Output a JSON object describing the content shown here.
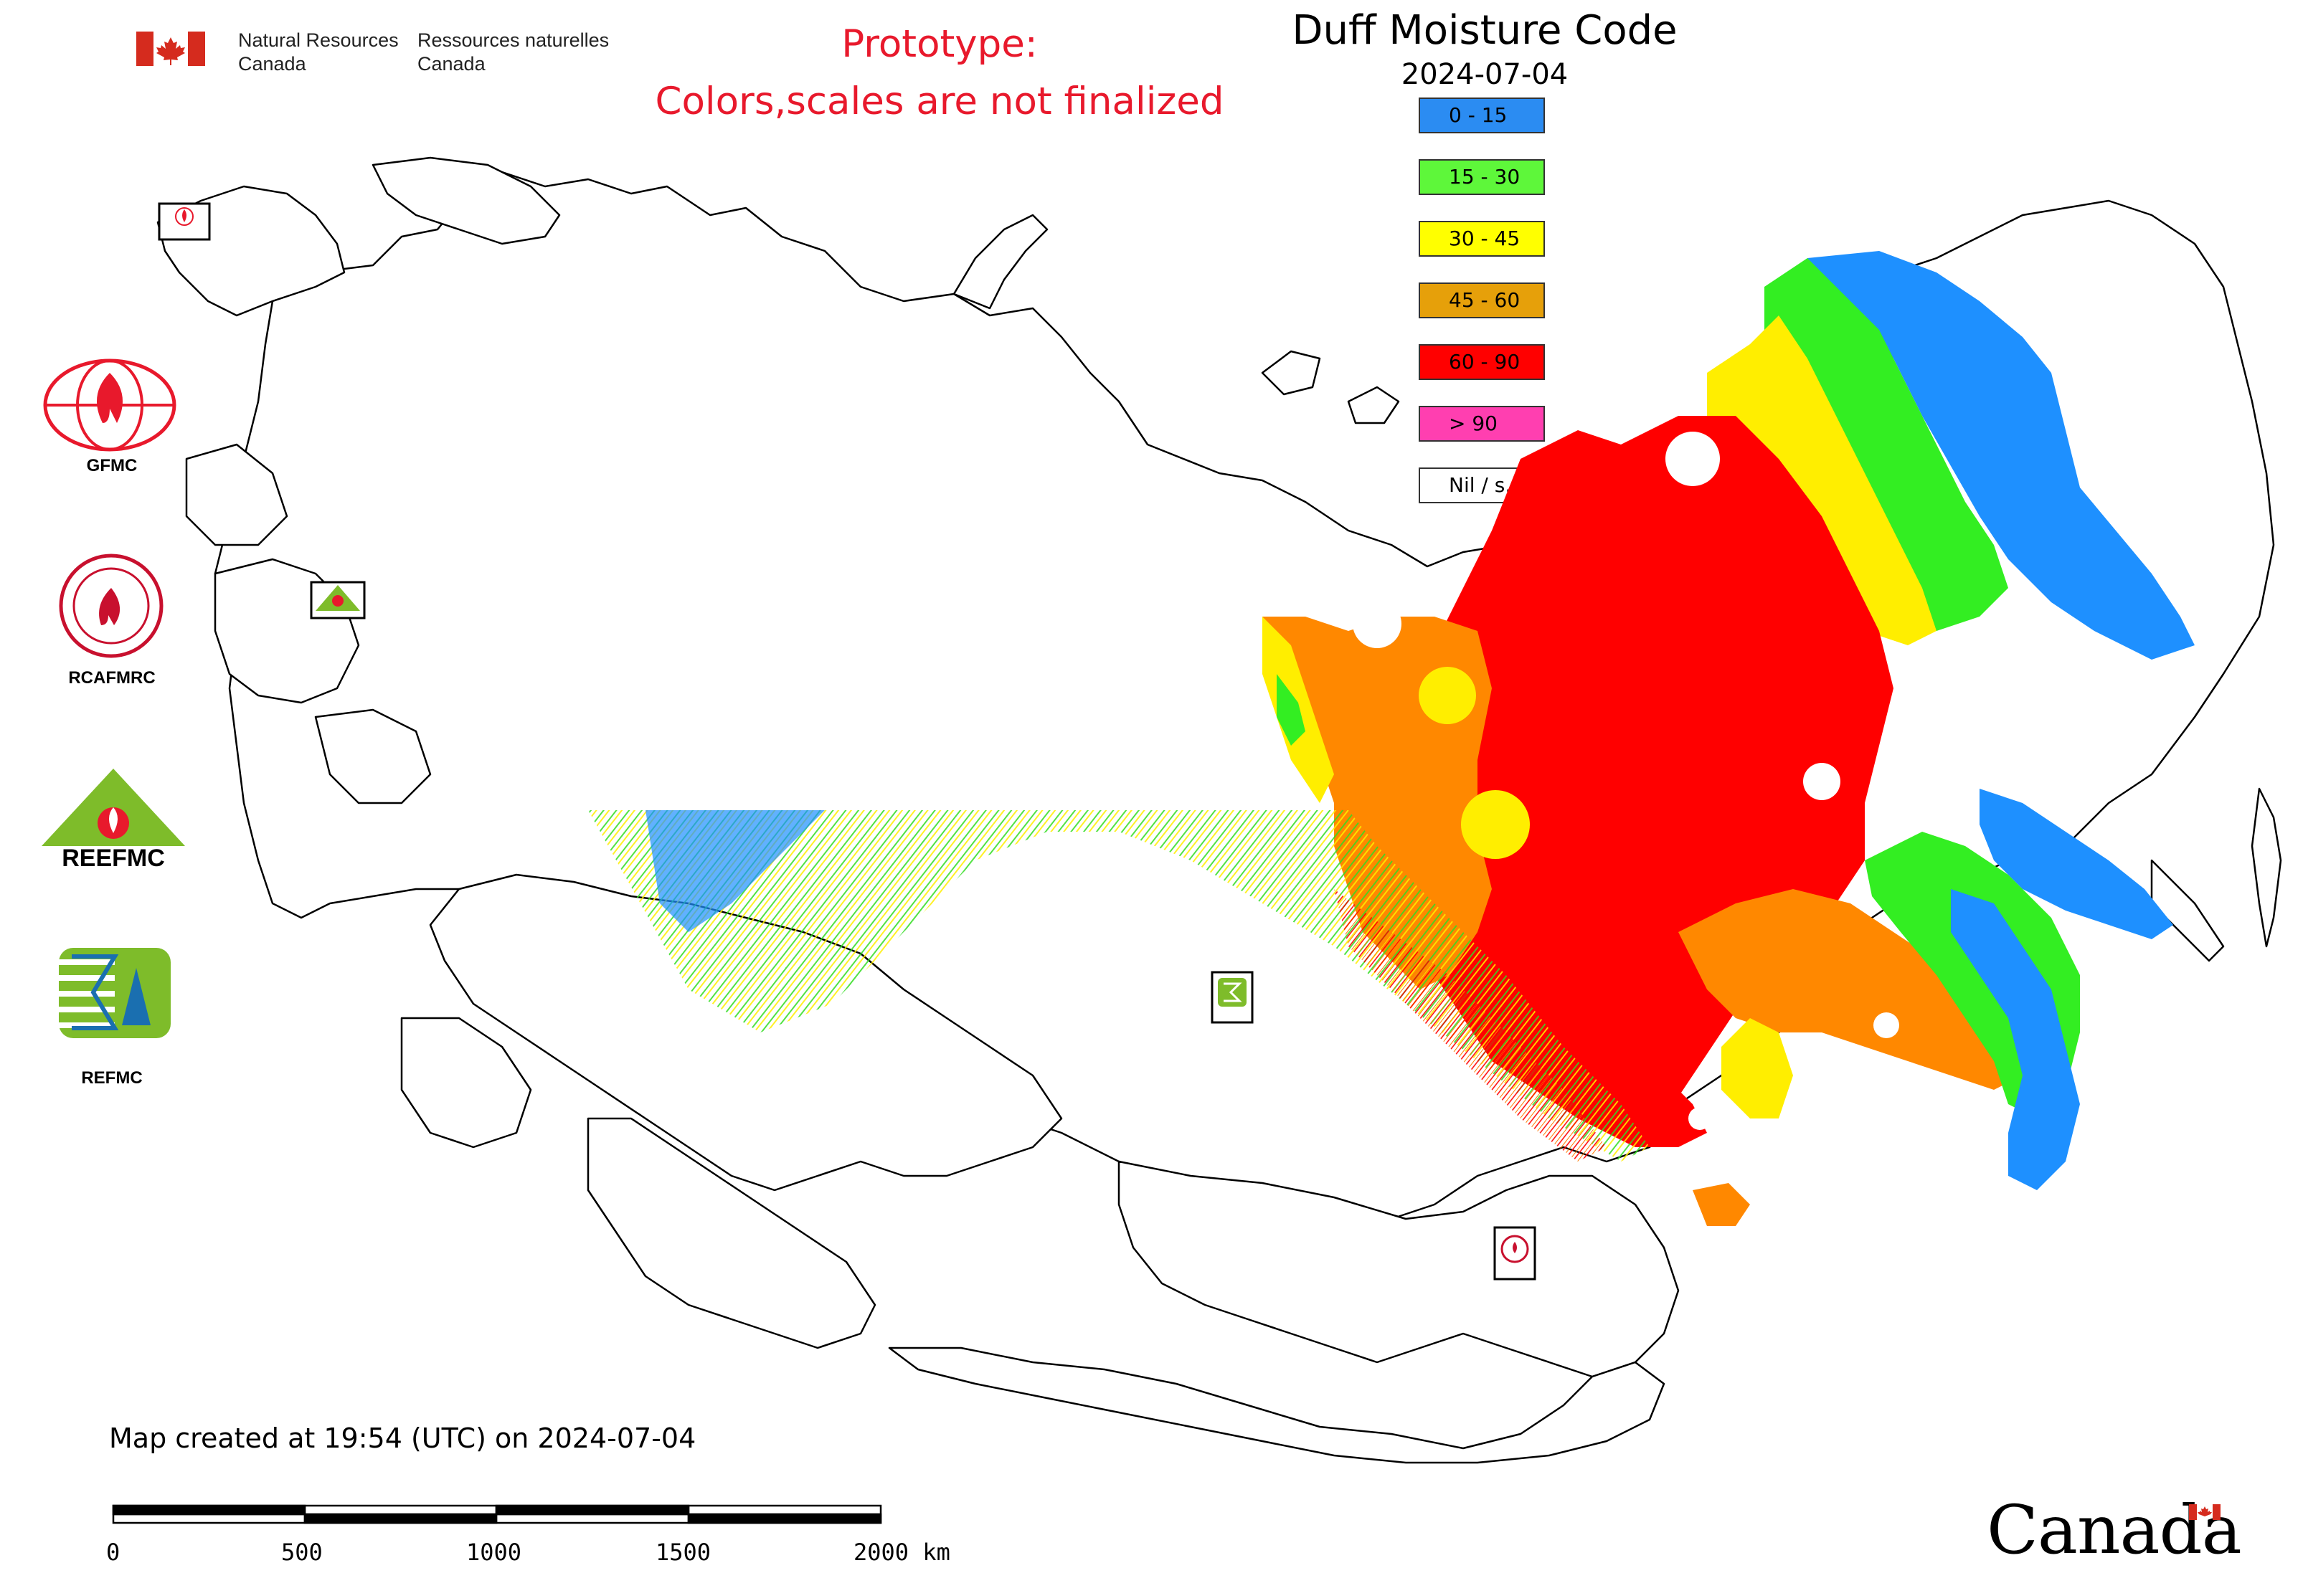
{
  "header": {
    "government_en_line1": "Natural Resources",
    "government_en_line2": "Canada",
    "government_fr_line1": "Ressources naturelles",
    "government_fr_line2": "Canada",
    "prototype_line1": "Prototype:",
    "prototype_line2": "Colors,scales are not finalized"
  },
  "map": {
    "title": "Duff Moisture Code",
    "date": "2024-07-04",
    "created_note": "Map created at 19:54 (UTC) on 2024-07-04",
    "legend": [
      {
        "label": "0 - 15",
        "color": "#2b8cf2"
      },
      {
        "label": "15 - 30",
        "color": "#5ef73a"
      },
      {
        "label": "30 - 45",
        "color": "#ffff00"
      },
      {
        "label": "45 - 60",
        "color": "#e6a00a"
      },
      {
        "label": "60 - 90",
        "color": "#ff0000"
      },
      {
        "label": "> 90",
        "color": "#ff3fb0"
      },
      {
        "label": "Nil / s.o.",
        "color": "#ffffff"
      }
    ],
    "colors": {
      "dmc_0_15": "#1e90ff",
      "dmc_15_30": "#33ee22",
      "dmc_30_45": "#ffee00",
      "dmc_45_60": "#ff8800",
      "dmc_60_90": "#ff0000",
      "accent_red": "#e8192c"
    },
    "scale_bar": {
      "labels": [
        "0",
        "500",
        "1000",
        "1500",
        "2000 km"
      ]
    }
  },
  "logos": [
    {
      "caption": "GFMC",
      "icon": "gfmc-fire-globe-icon"
    },
    {
      "caption": "RCAFMRC",
      "icon": "rcafmrc-seal-icon"
    },
    {
      "caption": "",
      "icon": "reefmc-triangle-icon",
      "wordmark": "REEFMC"
    },
    {
      "caption": "REFMC",
      "icon": "refmc-sigma-icon"
    }
  ],
  "map_markers": [
    {
      "caption": "GFMC",
      "icon": "gfmc-marker-icon"
    },
    {
      "caption": "REEFMC",
      "icon": "reefmc-marker-icon"
    },
    {
      "caption": "REFMC",
      "icon": "refmc-marker-icon"
    },
    {
      "caption": "RCAFMRC",
      "icon": "rcafmrc-marker-icon"
    }
  ],
  "footer": {
    "wordmark": "Canada"
  }
}
